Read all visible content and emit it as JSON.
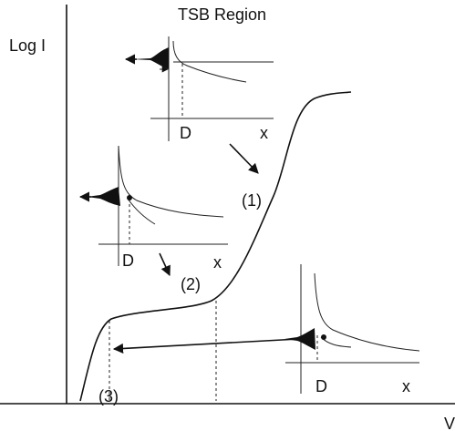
{
  "title": "TSB Region",
  "y_axis_label": "Log I",
  "x_axis_label": "V",
  "regions": [
    "(1)",
    "(2)",
    "(3)"
  ],
  "insets": [
    {
      "position_label": "D",
      "axis_label": "x"
    },
    {
      "position_label": "D",
      "axis_label": "x"
    },
    {
      "position_label": "D",
      "axis_label": "x"
    }
  ]
}
